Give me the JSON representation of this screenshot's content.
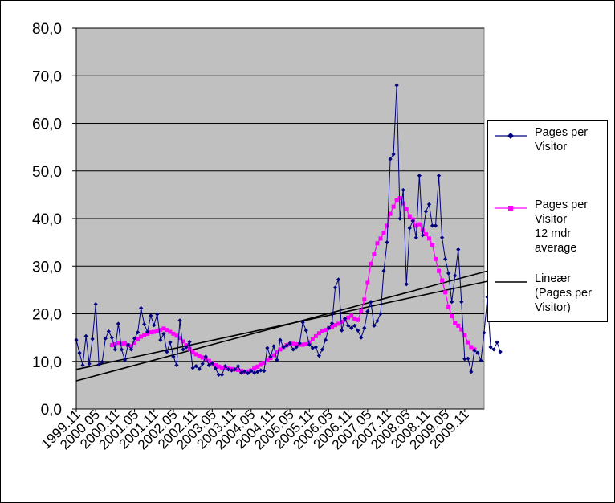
{
  "chart_data": {
    "type": "line",
    "title": "",
    "xlabel": "",
    "ylabel": "",
    "ylim": [
      0,
      80
    ],
    "y_ticks": [
      "0,0",
      "10,0",
      "20,0",
      "30,0",
      "40,0",
      "50,0",
      "60,0",
      "70,0",
      "80,0"
    ],
    "x_tick_labels": [
      "1999.11",
      "2000.05",
      "2000.11",
      "2001.05",
      "2001.11",
      "2002.05",
      "2002.11",
      "2003.05",
      "2003.11",
      "2004.05",
      "2004.11",
      "2005.05",
      "2005.11",
      "2006.05",
      "2006.11",
      "2007.05",
      "2007.11",
      "2008.05",
      "2008.11",
      "2009.05",
      "2009.11"
    ],
    "x_tick_month_index": [
      0,
      6,
      12,
      18,
      24,
      30,
      36,
      42,
      48,
      54,
      60,
      66,
      72,
      78,
      84,
      90,
      96,
      102,
      108,
      114,
      120
    ],
    "x_range_months": [
      0,
      126
    ],
    "grid": "horizontal",
    "plot_background": "#c0c0c0",
    "legend_position": "right",
    "series": [
      {
        "name": "Pages per Visitor",
        "color": "#000080",
        "marker": "diamond",
        "values": [
          14.5,
          11.8,
          9.2,
          15.3,
          9.5,
          14.7,
          22.0,
          9.3,
          9.9,
          14.8,
          16.3,
          15.0,
          12.5,
          17.9,
          12.5,
          10.3,
          13.5,
          12.5,
          14.8,
          16.1,
          21.2,
          17.8,
          16.2,
          19.6,
          17.6,
          19.9,
          14.5,
          15.8,
          12.0,
          14.0,
          11.0,
          9.2,
          18.6,
          12.5,
          13.0,
          14.1,
          8.6,
          9.0,
          8.4,
          9.5,
          11.0,
          9.2,
          9.6,
          8.5,
          7.2,
          7.2,
          9.0,
          8.3,
          8.1,
          8.3,
          9.0,
          7.6,
          7.9,
          7.5,
          8.0,
          7.6,
          7.8,
          8.1,
          8.0,
          12.8,
          11.0,
          13.2,
          10.3,
          14.5,
          13.0,
          13.3,
          13.8,
          12.5,
          13.0,
          13.8,
          18.2,
          16.5,
          13.5,
          12.8,
          13.0,
          11.2,
          12.5,
          14.5,
          17.0,
          18.0,
          25.5,
          27.2,
          16.5,
          19.0,
          17.5,
          17.0,
          17.5,
          16.5,
          15.0,
          17.0,
          20.5,
          22.5,
          17.5,
          18.5,
          20.0,
          29.0,
          35.0,
          52.5,
          53.5,
          68.0,
          40.0,
          46.0,
          26.2,
          38.0,
          39.5,
          36.0,
          49.0,
          36.5,
          41.5,
          43.0,
          38.5,
          38.5,
          49.0,
          36.0,
          31.5,
          28.5,
          22.5,
          28.0,
          33.5,
          22.5,
          10.5,
          10.6,
          7.8,
          12.3,
          11.8,
          10.2,
          16.0,
          23.5,
          13.0,
          12.5,
          14.0,
          12.0
        ]
      },
      {
        "name": "Pages per Visitor 12 mdr average",
        "legend_label": "Pages per\nVisitor\n12 mdr\naverage",
        "color": "#ff00ff",
        "marker": "square",
        "start_index": 11,
        "values": [
          13.4,
          13.6,
          13.9,
          13.7,
          13.8,
          13.4,
          13.2,
          13.9,
          14.7,
          15.2,
          15.5,
          15.8,
          16.1,
          16.2,
          16.4,
          16.6,
          16.9,
          16.6,
          16.2,
          15.8,
          15.4,
          14.9,
          14.2,
          13.4,
          12.6,
          12.0,
          11.5,
          11.1,
          10.8,
          10.5,
          10.1,
          9.6,
          9.2,
          8.9,
          8.7,
          8.6,
          8.5,
          8.4,
          8.3,
          8.2,
          8.0,
          7.8,
          7.9,
          8.1,
          8.5,
          8.9,
          9.3,
          9.7,
          10.2,
          10.7,
          11.3,
          11.9,
          12.5,
          13.0,
          13.4,
          13.6,
          13.7,
          13.6,
          13.5,
          13.5,
          13.6,
          14.0,
          14.6,
          15.3,
          15.9,
          16.3,
          16.6,
          17.0,
          17.3,
          17.6,
          17.9,
          18.3,
          18.7,
          19.2,
          19.6,
          19.0,
          18.7,
          20.5,
          23.0,
          26.5,
          30.5,
          32.5,
          34.8,
          35.8,
          37.0,
          38.5,
          41.0,
          42.5,
          43.8,
          44.3,
          43.2,
          42.0,
          40.5,
          39.8,
          38.5,
          38.8,
          37.6,
          36.7,
          35.8,
          34.5,
          31.5,
          29.0,
          27.0,
          24.5,
          21.5,
          19.5,
          18.0,
          17.5,
          16.7,
          15.5,
          14.0,
          13.0,
          12.5
        ]
      },
      {
        "name": "Lineær (Pages per Visitor)",
        "legend_label": "Lineær\n(Pages per\nVisitor)",
        "color": "#000000",
        "type": "trendline",
        "lines": [
          {
            "start_value": 5.9,
            "end_value": 29.7
          },
          {
            "start_value": 8.3,
            "end_value": 27.4
          }
        ]
      }
    ]
  }
}
